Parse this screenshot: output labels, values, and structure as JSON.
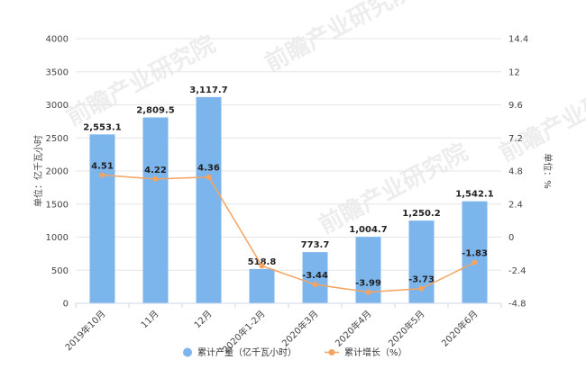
{
  "chart_data": {
    "type": "bar",
    "categories": [
      "2019年10月",
      "11月",
      "12月",
      "2020年1-2月",
      "2020年3月",
      "2020年4月",
      "2020年5月",
      "2020年6月"
    ],
    "series": [
      {
        "name": "累计产量（亿千瓦小时）",
        "type": "bar",
        "axis": "left",
        "color": "#7cb5ec",
        "values": [
          2553.1,
          2809.5,
          3117.7,
          518.8,
          773.7,
          1004.7,
          1250.2,
          1542.1
        ],
        "labels": [
          "2,553.1",
          "2,809.5",
          "3,117.7",
          "518.8",
          "773.7",
          "1,004.7",
          "1,250.2",
          "1,542.1"
        ]
      },
      {
        "name": "累计增长（%）",
        "type": "line",
        "axis": "right",
        "color": "#f4a460",
        "values": [
          4.51,
          4.22,
          4.36,
          -2.08,
          -3.44,
          -3.99,
          -3.73,
          -1.83
        ],
        "labels": [
          "4.51",
          "4.22",
          "4.36",
          "",
          "-3.44",
          "-3.99",
          "-3.73",
          "-1.83"
        ]
      }
    ],
    "y_left": {
      "label": "单位：亿千瓦小时",
      "min": 0,
      "max": 4000,
      "ticks": [
        "0",
        "500",
        "1000",
        "1500",
        "2000",
        "2500",
        "3000",
        "3500",
        "4000"
      ],
      "tick_values": [
        0,
        500,
        1000,
        1500,
        2000,
        2500,
        3000,
        3500,
        4000
      ]
    },
    "y_right": {
      "label": "单位：%",
      "min": -4.8,
      "max": 14.4,
      "ticks": [
        "-4.8",
        "-2.4",
        "0",
        "2.4",
        "4.8",
        "7.2",
        "9.6",
        "12",
        "14.4"
      ],
      "tick_values": [
        -4.8,
        -2.4,
        0,
        2.4,
        4.8,
        7.2,
        9.6,
        12,
        14.4
      ]
    },
    "grid": true,
    "legend_position": "bottom",
    "watermark": "前瞻产业研究院"
  }
}
